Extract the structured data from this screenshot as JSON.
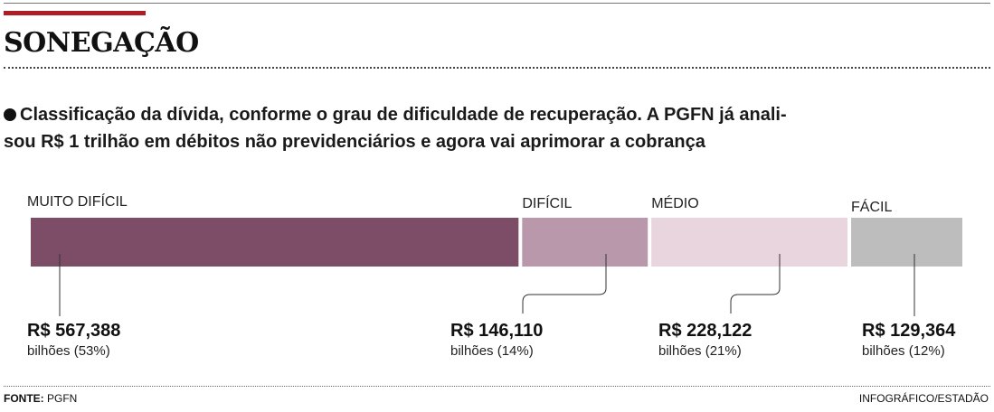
{
  "header": {
    "title": "SONEGAÇÃO",
    "accent_color": "#b01c24"
  },
  "subtitle": {
    "line1": "Classificação da dívida, conforme o grau de dificuldade de recuperação. A PGFN já anali-",
    "line2": "sou R$ 1 trilhão em débitos não previdenciários e agora vai aprimorar a cobrança"
  },
  "chart_data": {
    "type": "bar",
    "orientation": "horizontal-stacked",
    "categories": [
      "MUITO DIFÍCIL",
      "DIFÍCIL",
      "MÉDIO",
      "FÁCIL"
    ],
    "values": [
      567.388,
      146.11,
      228.122,
      129.364
    ],
    "value_labels": [
      "R$ 567,388",
      "R$ 146,110",
      "R$ 228,122",
      "R$ 129,364"
    ],
    "sub_labels": [
      "bilhões (53%)",
      "bilhões (14%)",
      "bilhões (21%)",
      "bilhões (12%)"
    ],
    "colors": [
      "#7d4d68",
      "#b898aa",
      "#e8d5de",
      "#bdbdbd"
    ],
    "title": "",
    "xlabel": "",
    "ylabel": ""
  },
  "footer": {
    "source_label": "FONTE:",
    "source": "PGFN",
    "credit": "INFOGRÁFICO/ESTADÃO"
  }
}
